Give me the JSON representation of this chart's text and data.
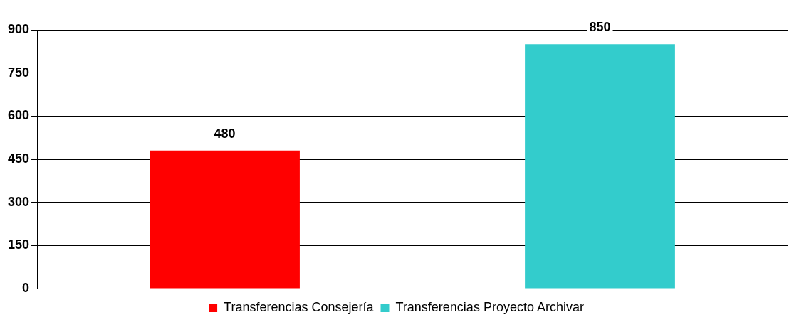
{
  "chart_data": {
    "type": "bar",
    "categories": [
      null,
      null
    ],
    "series": [
      {
        "name": "Transferencias Consejería",
        "color": "#ff0000",
        "values": [
          480,
          null
        ]
      },
      {
        "name": "Transferencias Proyecto Archivar",
        "color": "#33cccc",
        "values": [
          null,
          850
        ]
      }
    ],
    "ylim": [
      0,
      900
    ],
    "yticks": [
      0,
      150,
      300,
      450,
      600,
      750,
      900
    ],
    "grid": "y",
    "legend": "bottom",
    "data_labels": true,
    "tick_labels": "y"
  }
}
